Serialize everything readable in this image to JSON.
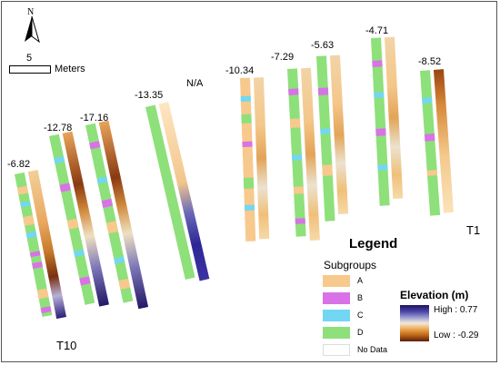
{
  "compass": {
    "north_label": "N"
  },
  "scale": {
    "value": "5",
    "unit": "Meters"
  },
  "transect_values": [
    {
      "id": "t10",
      "text": "-6.82"
    },
    {
      "id": "t9",
      "text": "-12.78"
    },
    {
      "id": "t8",
      "text": "-17.16"
    },
    {
      "id": "t7",
      "text": "-13.35"
    },
    {
      "id": "t6",
      "text": "N/A"
    },
    {
      "id": "t5",
      "text": "-10.34"
    },
    {
      "id": "t4",
      "text": "-7.29"
    },
    {
      "id": "t3",
      "text": "-5.63"
    },
    {
      "id": "t2",
      "text": "-4.71"
    },
    {
      "id": "t1",
      "text": "-8.52"
    }
  ],
  "end_labels": {
    "left": "T10",
    "right": "T1"
  },
  "legend": {
    "title": "Legend",
    "subgroups_title": "Subgroups",
    "subgroups": [
      {
        "label": "A",
        "color": "#f7c98c"
      },
      {
        "label": "B",
        "color": "#d972e6"
      },
      {
        "label": "C",
        "color": "#72d7f2"
      },
      {
        "label": "D",
        "color": "#8ee07a"
      },
      {
        "label": "No Data",
        "color": "#ffffff"
      }
    ],
    "elevation_title": "Elevation (m)",
    "high_label": "High : 0.77",
    "low_label": "Low : -0.29"
  }
}
